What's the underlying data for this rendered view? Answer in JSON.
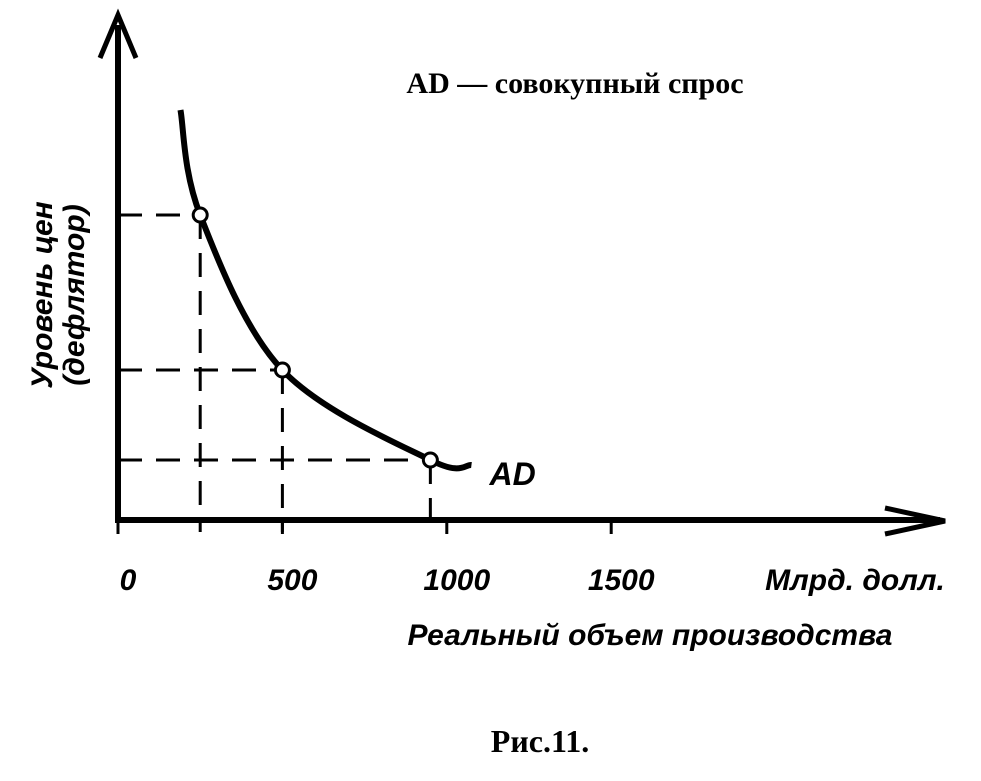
{
  "chart_data": {
    "type": "line",
    "title": "AD — совокупный спрос",
    "caption": "Рис.11.",
    "x_label": "Реальный объем производства",
    "x_unit": "Млрд. долл.",
    "y_label": [
      "Уровень цен",
      "(дефлятор)"
    ],
    "x": [
      190,
      250,
      500,
      950,
      1075
    ],
    "series": [
      {
        "name": "AD",
        "color": "#000000",
        "values": [
          82,
          61,
          30,
          12,
          11
        ],
        "markers": [
          false,
          true,
          true,
          true,
          false
        ]
      }
    ],
    "xlim": [
      0,
      2500
    ],
    "ylim": [
      0,
      100
    ],
    "xticks": [
      0,
      500,
      1000,
      1500
    ],
    "guides": true
  }
}
